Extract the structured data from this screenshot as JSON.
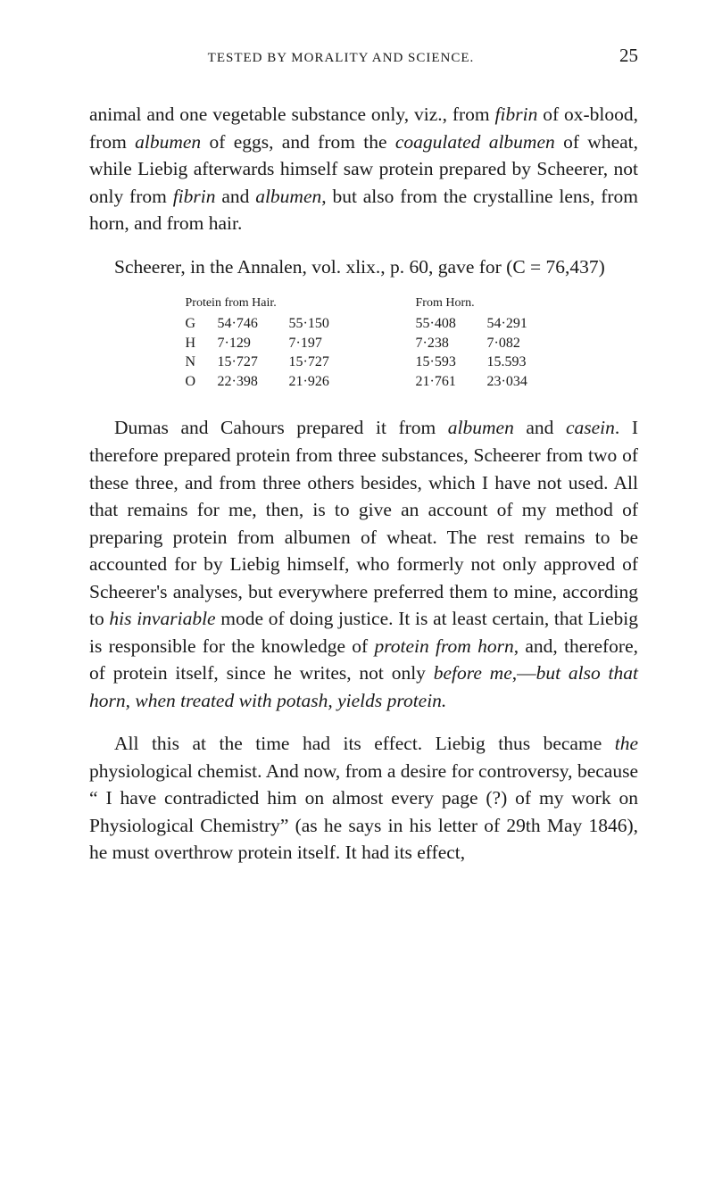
{
  "header": {
    "running": "TESTED BY MORALITY AND SCIENCE.",
    "page": "25"
  },
  "para1": {
    "t1": "animal and one vegetable substance only, viz., from ",
    "i1": "fibrin",
    "t2": " of ox-blood, from ",
    "i2": "albumen",
    "t3": " of eggs, and from the ",
    "i3": "coagulated albumen",
    "t4": " of wheat, while Liebig afterwards himself saw protein prepared by Scheerer, not only from ",
    "i4": "fibrin",
    "t5": " and ",
    "i5": "albumen",
    "t6": ", but also from the crystalline lens, from horn, and from hair."
  },
  "para2": {
    "t1": "Scheerer, in the Annalen, vol. xlix., p. 60, gave for (C = 76,437)"
  },
  "table": {
    "left": {
      "header": "Protein from Hair.",
      "rows": [
        {
          "label": "G",
          "c1": "54·746",
          "c2": "55·150"
        },
        {
          "label": "H",
          "c1": "7·129",
          "c2": "7·197"
        },
        {
          "label": "N",
          "c1": "15·727",
          "c2": "15·727"
        },
        {
          "label": "O",
          "c1": "22·398",
          "c2": "21·926"
        }
      ]
    },
    "right": {
      "header": "From Horn.",
      "rows": [
        {
          "c1": "55·408",
          "c2": "54·291"
        },
        {
          "c1": "7·238",
          "c2": "7·082"
        },
        {
          "c1": "15·593",
          "c2": "15.593"
        },
        {
          "c1": "21·761",
          "c2": "23·034"
        }
      ]
    }
  },
  "para3": {
    "t1": "Dumas and Cahours prepared it from ",
    "i1": "albumen",
    "t2": " and ",
    "i2": "casein",
    "t3": ". I therefore prepared protein from three sub­stances, Scheerer from two of these three, and from three others besides, which I have not used. All that remains for me, then, is to give an account of my method of preparing protein from albumen of wheat. The rest remains to be accounted for by Liebig him­self, who formerly not only approved of Scheerer's analyses, but everywhere preferred them to mine, ac­cording to ",
    "i3": "his invariable",
    "t4": " mode of doing justice. It is at least certain, that Liebig is responsible for the know­ledge of ",
    "i4": "protein from horn",
    "t5": ", and, therefore, of protein itself, since he writes, not only ",
    "i5": "before me",
    "t6": ",—",
    "i6": "but also that horn, when treated with potash, yields protein."
  },
  "para4": {
    "t1": "All this at the time had its effect. Liebig thus be­came ",
    "i1": "the",
    "t2": " physiological chemist. And now, from a de­sire for controversy, because “ I have contradicted him on almost every page (?) of my work on Physiological Chemistry” (as he says in his letter of 29th May 1846), he must overthrow protein itself. It had its effect,"
  }
}
